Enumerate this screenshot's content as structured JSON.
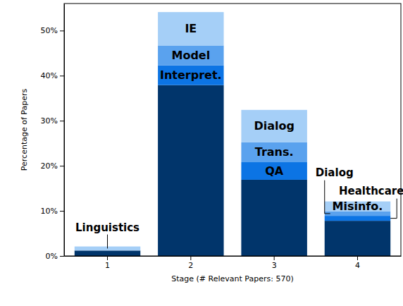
{
  "chart_data": {
    "type": "bar",
    "stacked": true,
    "grid": false,
    "x_label": "Stage (# Relevant Papers: 570)",
    "y_label": "Percentage of Papers",
    "categories": [
      "1",
      "2",
      "3",
      "4"
    ],
    "ylim": [
      0,
      56
    ],
    "yticks": [
      {
        "value": 0,
        "label": "0%"
      },
      {
        "value": 10,
        "label": "10%"
      },
      {
        "value": 20,
        "label": "20%"
      },
      {
        "value": 30,
        "label": "30%"
      },
      {
        "value": 40,
        "label": "40%"
      },
      {
        "value": 50,
        "label": "50%"
      }
    ],
    "series": [
      {
        "color": "#01356b",
        "values": [
          1.2,
          37.9,
          16.9,
          7.8
        ],
        "labels": [
          null,
          null,
          null,
          null
        ]
      },
      {
        "color": "#0c74e4",
        "values": [
          null,
          4.4,
          3.9,
          1.1
        ],
        "labels": [
          null,
          "Interpret.",
          "QA",
          "Healthcare"
        ]
      },
      {
        "color": "#5aa2ee",
        "values": [
          null,
          4.4,
          4.4,
          1.0
        ],
        "labels": [
          null,
          "Model",
          "Trans.",
          "Dialog"
        ]
      },
      {
        "color": "#a5cff7",
        "values": [
          0.9,
          7.4,
          7.2,
          2.2
        ],
        "labels": [
          "Linguistics",
          "IE",
          "Dialog",
          "Misinfo."
        ]
      }
    ]
  }
}
